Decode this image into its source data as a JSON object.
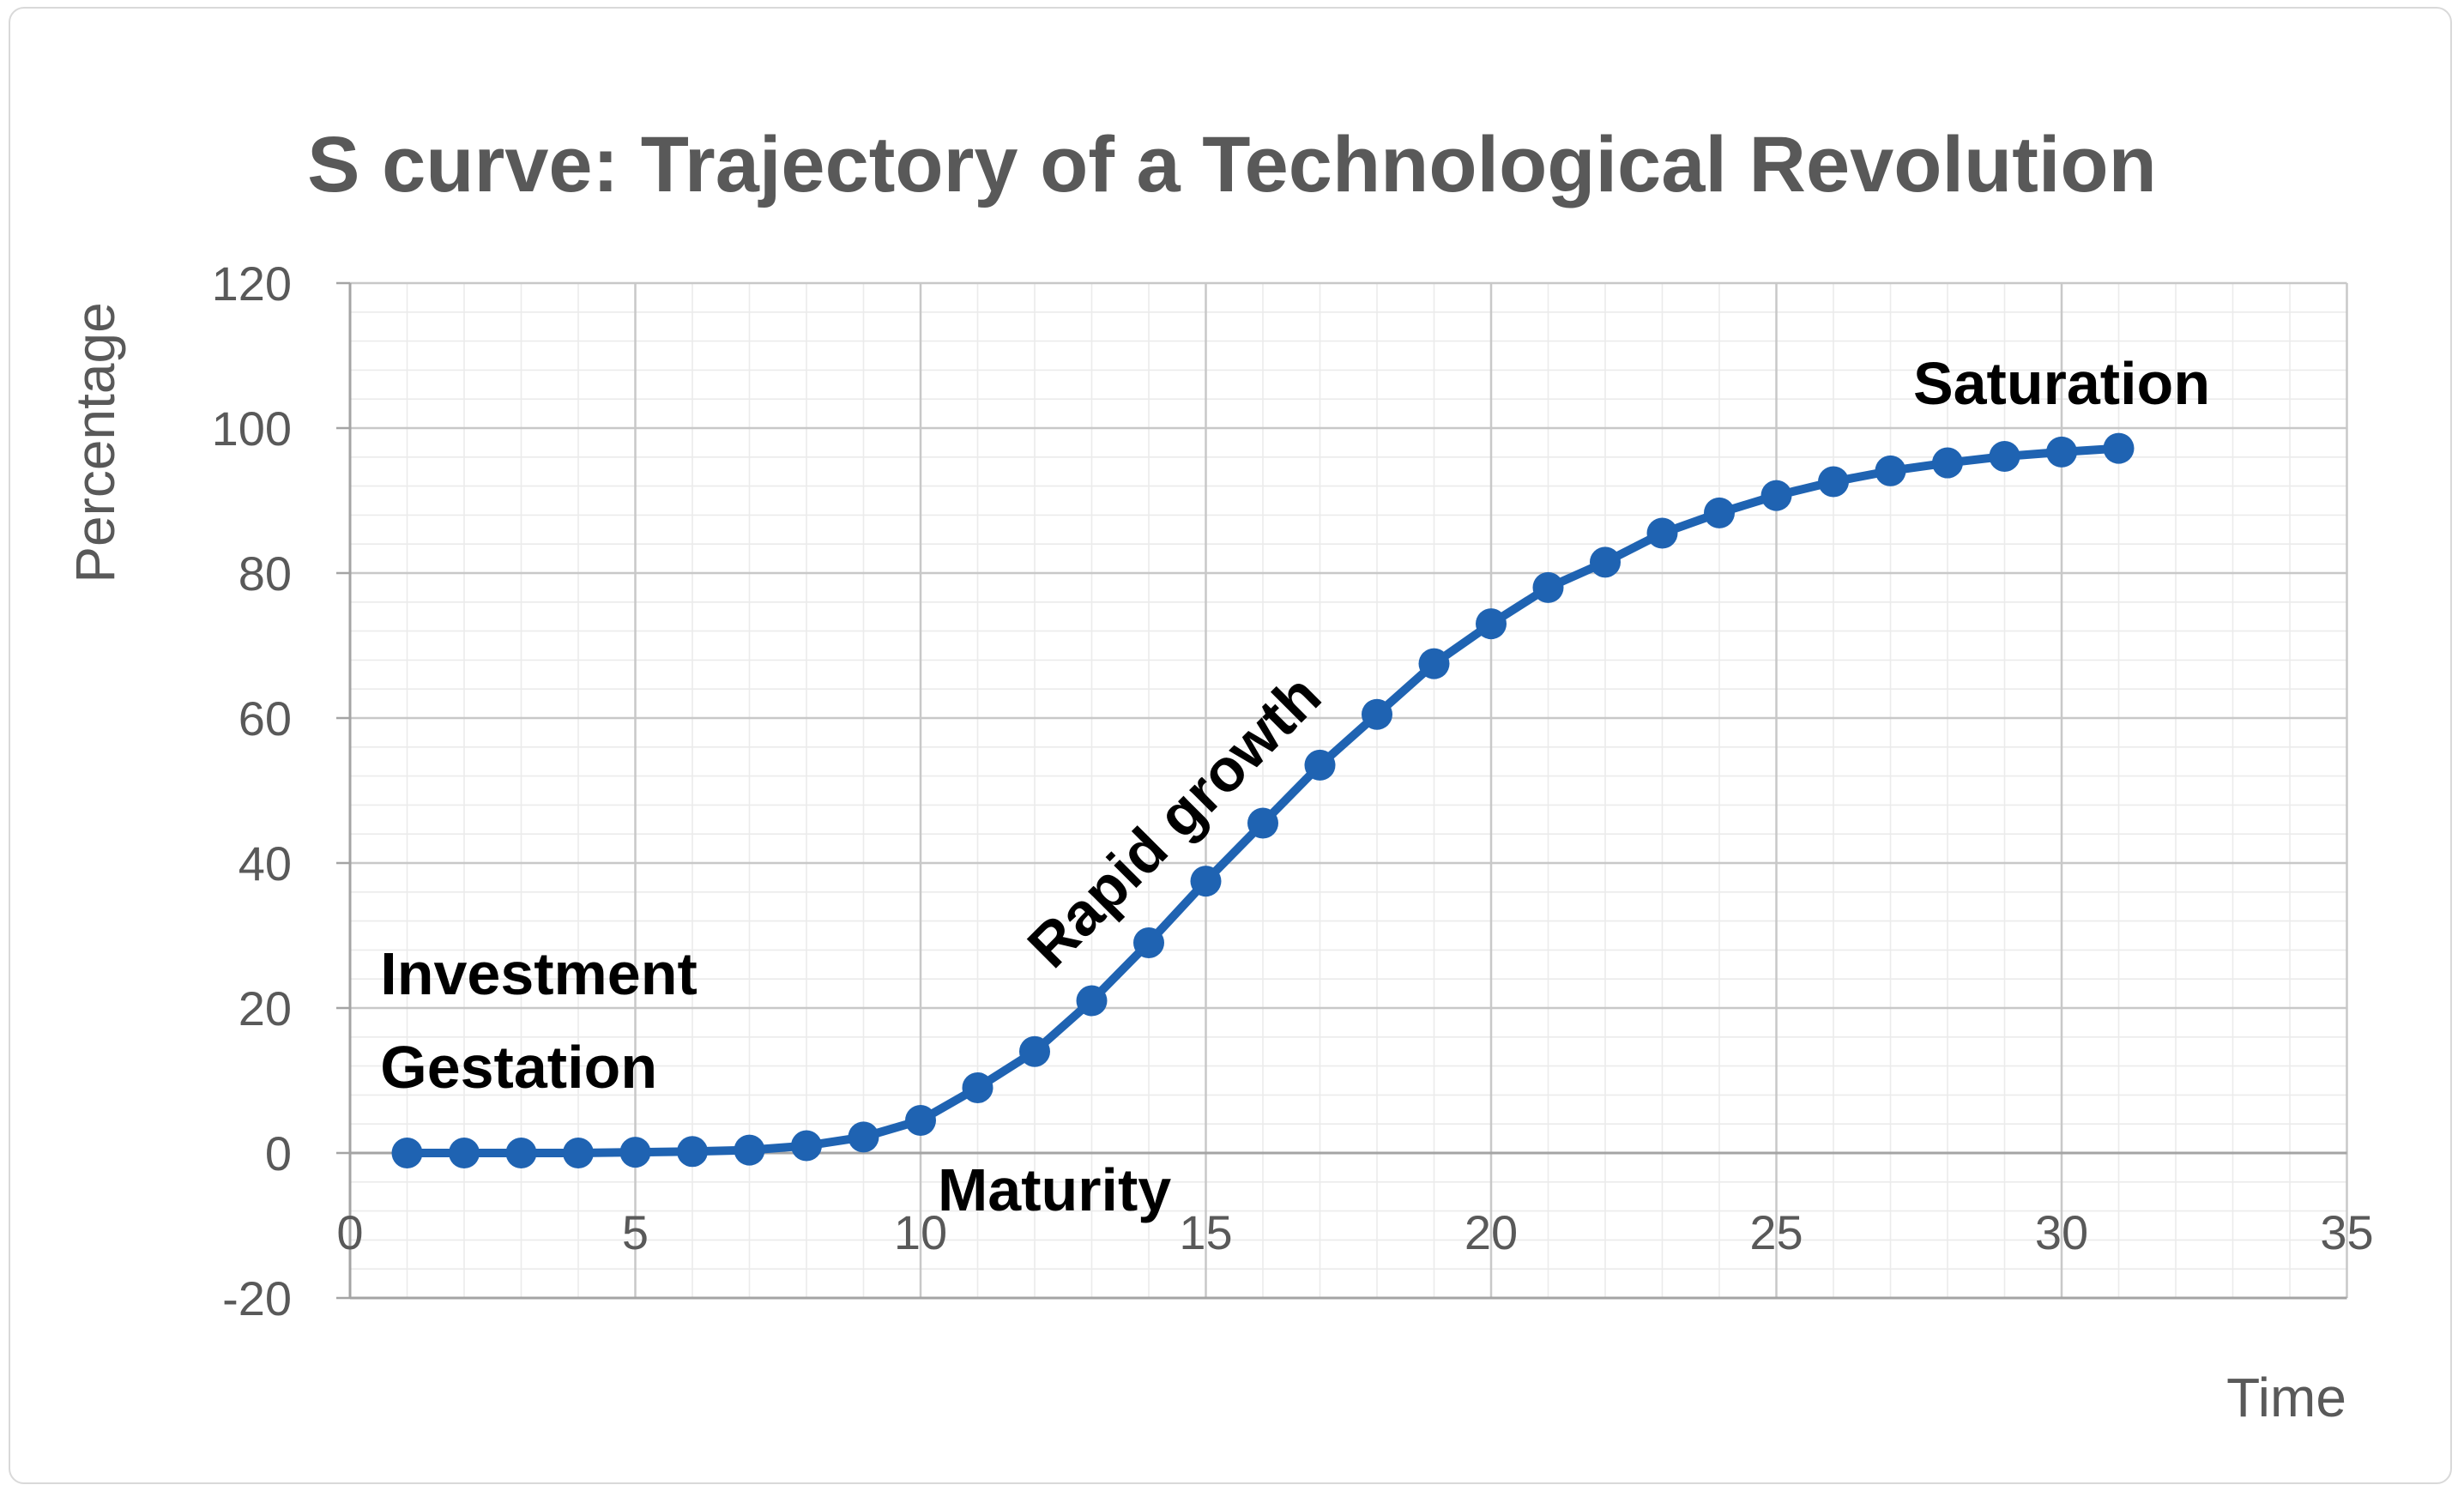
{
  "chart_data": {
    "type": "line",
    "title": "S curve: Trajectory of a Technological Revolution",
    "xlabel": "Time",
    "ylabel": "Percentage",
    "legend": "none",
    "grid": "major+minor",
    "marker": "circle",
    "xlim": [
      0,
      35
    ],
    "ylim": [
      -20,
      120
    ],
    "x_major_ticks": [
      0,
      5,
      10,
      15,
      20,
      25,
      30,
      35
    ],
    "y_major_ticks": [
      -20,
      0,
      20,
      40,
      60,
      80,
      100,
      120
    ],
    "x_minor_step": 1,
    "y_minor_step": 4,
    "x": [
      1,
      2,
      3,
      4,
      5,
      6,
      7,
      8,
      9,
      10,
      11,
      12,
      13,
      14,
      15,
      16,
      17,
      18,
      19,
      20,
      21,
      22,
      23,
      24,
      25,
      26,
      27,
      28,
      29,
      30,
      31
    ],
    "series": [
      {
        "name": "S curve",
        "color": "#1f63b2",
        "values": [
          0,
          0,
          0,
          0,
          0.1,
          0.2,
          0.4,
          1,
          2.2,
          4.5,
          9,
          14,
          21,
          29,
          37.5,
          45.5,
          53.5,
          60.5,
          67.5,
          73,
          78,
          81.5,
          85.5,
          88.3,
          90.7,
          92.6,
          94.1,
          95.2,
          96.1,
          96.7,
          97.2
        ]
      }
    ],
    "annotations": [
      {
        "text": "Investment",
        "x": 0.53,
        "y": 21.9,
        "anchor": "start",
        "rotation": 0
      },
      {
        "text": "Gestation",
        "x": 0.53,
        "y": 9.0,
        "anchor": "start",
        "rotation": 0
      },
      {
        "text": "Maturity",
        "x": 10.3,
        "y": -7.9,
        "anchor": "start",
        "rotation": 0
      },
      {
        "text": "Rapid growth",
        "x": 14.7,
        "y": 43.8,
        "anchor": "middle",
        "rotation": -45
      },
      {
        "text": "Saturation",
        "x": 30.0,
        "y": 103.3,
        "anchor": "middle",
        "rotation": 0
      }
    ]
  },
  "colors": {
    "series": "#1f63b2",
    "title_text": "#595959",
    "axis_text": "#595959",
    "annotation_text": "#000000",
    "grid_minor": "#ebebeb",
    "grid_major": "#c8c8c8",
    "axis_line": "#a4a4a4",
    "chart_border": "#d9d9d9",
    "background": "#ffffff"
  }
}
